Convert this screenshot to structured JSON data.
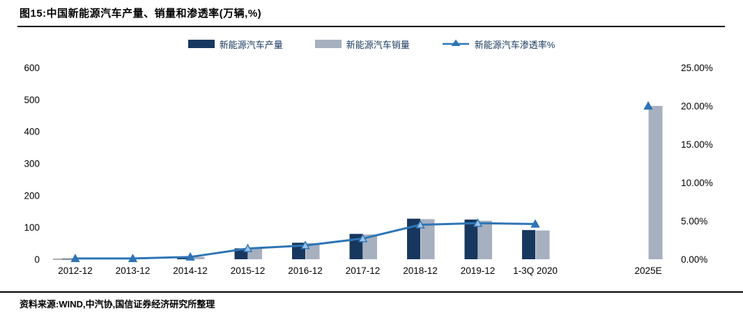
{
  "header": {
    "title": "图15:中国新能源汽车产量、销量和渗透率(万辆,%)"
  },
  "footer": {
    "source": "资料来源:WIND,中汽协,国信证券经济研究所整理"
  },
  "colors": {
    "production_bar": "#17375E",
    "sales_bar": "#A6B0BF",
    "penetration_line": "#2E75B6",
    "marker_fill": "#9CC2E5",
    "marker_stroke": "#2E74B5",
    "axis_stub": "#595959",
    "text": "#000000"
  },
  "chart_data": {
    "type": "bar",
    "subtype": "combo-bar-line-dual-axis",
    "title": "中国新能源汽车产量、销量和渗透率(万辆,%)",
    "categories": [
      "2012-12",
      "2013-12",
      "2014-12",
      "2015-12",
      "2016-12",
      "2017-12",
      "2018-12",
      "2019-12",
      "1-3Q 2020",
      "2025E"
    ],
    "series": [
      {
        "name": "新能源汽车产量",
        "type": "bar",
        "axis": "left",
        "color": "#17375E",
        "values": [
          1.3,
          1.8,
          7.8,
          34.0,
          51.7,
          79.4,
          127.0,
          124.2,
          91.4,
          null
        ]
      },
      {
        "name": "新能源汽车销量",
        "type": "bar",
        "axis": "left",
        "color": "#A6B0BF",
        "values": [
          1.3,
          1.8,
          7.5,
          33.1,
          50.7,
          77.7,
          125.6,
          120.6,
          90.1,
          480
        ]
      },
      {
        "name": "新能源汽车渗透率%",
        "type": "line",
        "axis": "right",
        "color": "#2E75B6",
        "marker": "triangle-up",
        "connected_through_index": 8,
        "values": [
          0.1,
          0.1,
          0.3,
          1.4,
          1.8,
          2.7,
          4.5,
          4.7,
          4.6,
          20.0
        ]
      }
    ],
    "axes": {
      "left": {
        "min": 0,
        "max": 600,
        "step": 100,
        "tick_labels": [
          "0",
          "100",
          "200",
          "300",
          "400",
          "500",
          "600"
        ]
      },
      "right": {
        "min": 0,
        "max": 25,
        "step": 5,
        "tick_labels": [
          "0.00%",
          "5.00%",
          "10.00%",
          "15.00%",
          "20.00%",
          "25.00%"
        ]
      }
    },
    "grid": false,
    "legend_position": "top-center",
    "notes": "2025E shows only a sales-forecast bar with an isolated penetration marker at 20%"
  }
}
